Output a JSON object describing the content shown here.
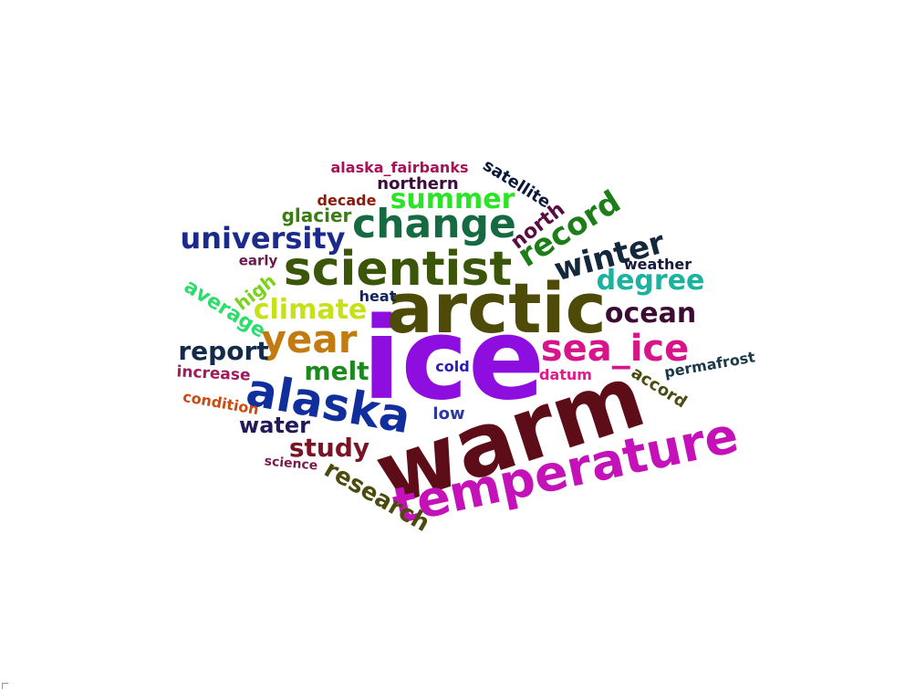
{
  "words": [
    {
      "text": "ice",
      "color": "#8e0ee0"
    },
    {
      "text": "warm",
      "color": "#5c0d17"
    },
    {
      "text": "arctic",
      "color": "#4e4a08"
    },
    {
      "text": "temperature",
      "color": "#c412b8"
    },
    {
      "text": "scientist",
      "color": "#3b5608"
    },
    {
      "text": "alaska",
      "color": "#102f9c"
    },
    {
      "text": "change",
      "color": "#156a42"
    },
    {
      "text": "sea_ice",
      "color": "#d6158a"
    },
    {
      "text": "year",
      "color": "#c27b10"
    },
    {
      "text": "record",
      "color": "#1d7d16"
    },
    {
      "text": "winter",
      "color": "#14283c"
    },
    {
      "text": "summer",
      "color": "#2ce426"
    },
    {
      "text": "university",
      "color": "#1a2b8c"
    },
    {
      "text": "climate",
      "color": "#c8e01a"
    },
    {
      "text": "degree",
      "color": "#19b3a0"
    },
    {
      "text": "ocean",
      "color": "#3c0b33"
    },
    {
      "text": "report",
      "color": "#142a4a"
    },
    {
      "text": "melt",
      "color": "#1d8a1d"
    },
    {
      "text": "study",
      "color": "#7a1424"
    },
    {
      "text": "research",
      "color": "#4c4a0d"
    },
    {
      "text": "water",
      "color": "#211a5a"
    },
    {
      "text": "north",
      "color": "#5a0c42"
    },
    {
      "text": "glacier",
      "color": "#3b7d12"
    },
    {
      "text": "northern",
      "color": "#3c0c3c"
    },
    {
      "text": "satellite",
      "color": "#0c1a3a"
    },
    {
      "text": "alaska_fairbanks",
      "color": "#a81258"
    },
    {
      "text": "decade",
      "color": "#8a1a0a"
    },
    {
      "text": "weather",
      "color": "#151a3a"
    },
    {
      "text": "average",
      "color": "#2cdc6c"
    },
    {
      "text": "high",
      "color": "#7ad21a"
    },
    {
      "text": "early",
      "color": "#6a1a4a"
    },
    {
      "text": "heat",
      "color": "#13245c"
    },
    {
      "text": "increase",
      "color": "#a01a5c"
    },
    {
      "text": "condition",
      "color": "#cc4a10"
    },
    {
      "text": "cold",
      "color": "#2c1ab4"
    },
    {
      "text": "low",
      "color": "#2c3aa0"
    },
    {
      "text": "datum",
      "color": "#e41a8c"
    },
    {
      "text": "accord",
      "color": "#4c4a10"
    },
    {
      "text": "permafrost",
      "color": "#1a3a4a"
    },
    {
      "text": "science",
      "color": "#7a1a4a"
    }
  ]
}
